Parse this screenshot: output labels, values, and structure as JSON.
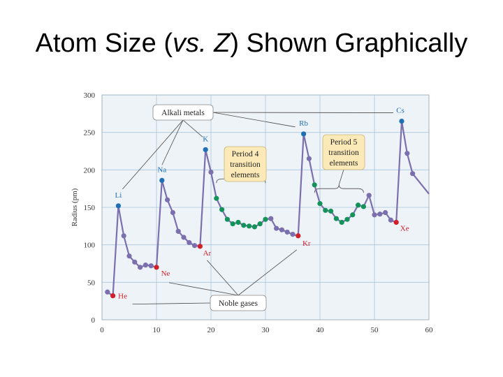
{
  "slide": {
    "title_pre": "Atom Size (",
    "title_em1": "vs.",
    "title_mid": " ",
    "title_em2": "Z",
    "title_post": ") Shown Graphically"
  },
  "colors": {
    "line": "#7b6fae",
    "default_point": "#7b6fae",
    "alkali": "#1f6fb5",
    "noble": "#d0202a",
    "transition": "#13925a",
    "grid": "#a9c6dd",
    "plot_bg": "#eef3f8"
  },
  "chart_data": {
    "type": "line",
    "xlabel": "",
    "ylabel": "Radius (pm)",
    "xlim": [
      0,
      60
    ],
    "ylim": [
      0,
      300
    ],
    "x_ticks": [
      0,
      10,
      20,
      30,
      40,
      50,
      60
    ],
    "y_ticks": [
      0,
      50,
      100,
      150,
      200,
      250,
      300
    ],
    "grid": true,
    "points": [
      {
        "z": 1,
        "r": 37,
        "group": "default"
      },
      {
        "z": 2,
        "r": 32,
        "group": "noble"
      },
      {
        "z": 3,
        "r": 152,
        "group": "alkali"
      },
      {
        "z": 4,
        "r": 112,
        "group": "default"
      },
      {
        "z": 5,
        "r": 85,
        "group": "default"
      },
      {
        "z": 6,
        "r": 77,
        "group": "default"
      },
      {
        "z": 7,
        "r": 70,
        "group": "default"
      },
      {
        "z": 8,
        "r": 73,
        "group": "default"
      },
      {
        "z": 9,
        "r": 72,
        "group": "default"
      },
      {
        "z": 10,
        "r": 70,
        "group": "noble"
      },
      {
        "z": 11,
        "r": 186,
        "group": "alkali"
      },
      {
        "z": 12,
        "r": 160,
        "group": "default"
      },
      {
        "z": 13,
        "r": 143,
        "group": "default"
      },
      {
        "z": 14,
        "r": 118,
        "group": "default"
      },
      {
        "z": 15,
        "r": 110,
        "group": "default"
      },
      {
        "z": 16,
        "r": 103,
        "group": "default"
      },
      {
        "z": 17,
        "r": 99,
        "group": "default"
      },
      {
        "z": 18,
        "r": 98,
        "group": "noble"
      },
      {
        "z": 19,
        "r": 227,
        "group": "alkali"
      },
      {
        "z": 20,
        "r": 197,
        "group": "default"
      },
      {
        "z": 21,
        "r": 162,
        "group": "transition"
      },
      {
        "z": 22,
        "r": 147,
        "group": "transition"
      },
      {
        "z": 23,
        "r": 134,
        "group": "transition"
      },
      {
        "z": 24,
        "r": 128,
        "group": "transition"
      },
      {
        "z": 25,
        "r": 130,
        "group": "transition"
      },
      {
        "z": 26,
        "r": 126,
        "group": "transition"
      },
      {
        "z": 27,
        "r": 125,
        "group": "transition"
      },
      {
        "z": 28,
        "r": 124,
        "group": "transition"
      },
      {
        "z": 29,
        "r": 128,
        "group": "transition"
      },
      {
        "z": 30,
        "r": 134,
        "group": "transition"
      },
      {
        "z": 31,
        "r": 135,
        "group": "default"
      },
      {
        "z": 32,
        "r": 122,
        "group": "default"
      },
      {
        "z": 33,
        "r": 120,
        "group": "default"
      },
      {
        "z": 34,
        "r": 117,
        "group": "default"
      },
      {
        "z": 35,
        "r": 114,
        "group": "default"
      },
      {
        "z": 36,
        "r": 112,
        "group": "noble"
      },
      {
        "z": 37,
        "r": 248,
        "group": "alkali"
      },
      {
        "z": 38,
        "r": 215,
        "group": "default"
      },
      {
        "z": 39,
        "r": 180,
        "group": "transition"
      },
      {
        "z": 40,
        "r": 155,
        "group": "transition"
      },
      {
        "z": 41,
        "r": 146,
        "group": "transition"
      },
      {
        "z": 42,
        "r": 145,
        "group": "transition"
      },
      {
        "z": 43,
        "r": 135,
        "group": "transition"
      },
      {
        "z": 44,
        "r": 130,
        "group": "transition"
      },
      {
        "z": 45,
        "r": 134,
        "group": "transition"
      },
      {
        "z": 46,
        "r": 140,
        "group": "transition"
      },
      {
        "z": 47,
        "r": 153,
        "group": "transition"
      },
      {
        "z": 48,
        "r": 151,
        "group": "transition"
      },
      {
        "z": 49,
        "r": 166,
        "group": "default"
      },
      {
        "z": 50,
        "r": 140,
        "group": "default"
      },
      {
        "z": 51,
        "r": 141,
        "group": "default"
      },
      {
        "z": 52,
        "r": 143,
        "group": "default"
      },
      {
        "z": 53,
        "r": 133,
        "group": "default"
      },
      {
        "z": 54,
        "r": 130,
        "group": "noble"
      },
      {
        "z": 55,
        "r": 265,
        "group": "alkali"
      },
      {
        "z": 56,
        "r": 222,
        "group": "default"
      },
      {
        "z": 57,
        "r": 195,
        "group": "default"
      }
    ],
    "line_end": {
      "z": 60,
      "r": 168
    },
    "element_labels": [
      {
        "text": "Li",
        "z": 3,
        "group": "alkali"
      },
      {
        "text": "Na",
        "z": 11,
        "group": "alkali"
      },
      {
        "text": "K",
        "z": 19,
        "group": "alkali"
      },
      {
        "text": "Rb",
        "z": 37,
        "group": "alkali"
      },
      {
        "text": "Cs",
        "z": 55,
        "group": "alkali"
      },
      {
        "text": "He",
        "z": 2,
        "group": "noble"
      },
      {
        "text": "Ne",
        "z": 10,
        "group": "noble"
      },
      {
        "text": "Ar",
        "z": 18,
        "group": "noble"
      },
      {
        "text": "Kr",
        "z": 36,
        "group": "noble"
      },
      {
        "text": "Xe",
        "z": 54,
        "group": "noble"
      }
    ],
    "annotations": {
      "alkali_metals": "Alkali metals",
      "noble_gases": "Noble gases",
      "period4": [
        "Period 4",
        "transition",
        "elements"
      ],
      "period5": [
        "Period 5",
        "transition",
        "elements"
      ]
    }
  }
}
